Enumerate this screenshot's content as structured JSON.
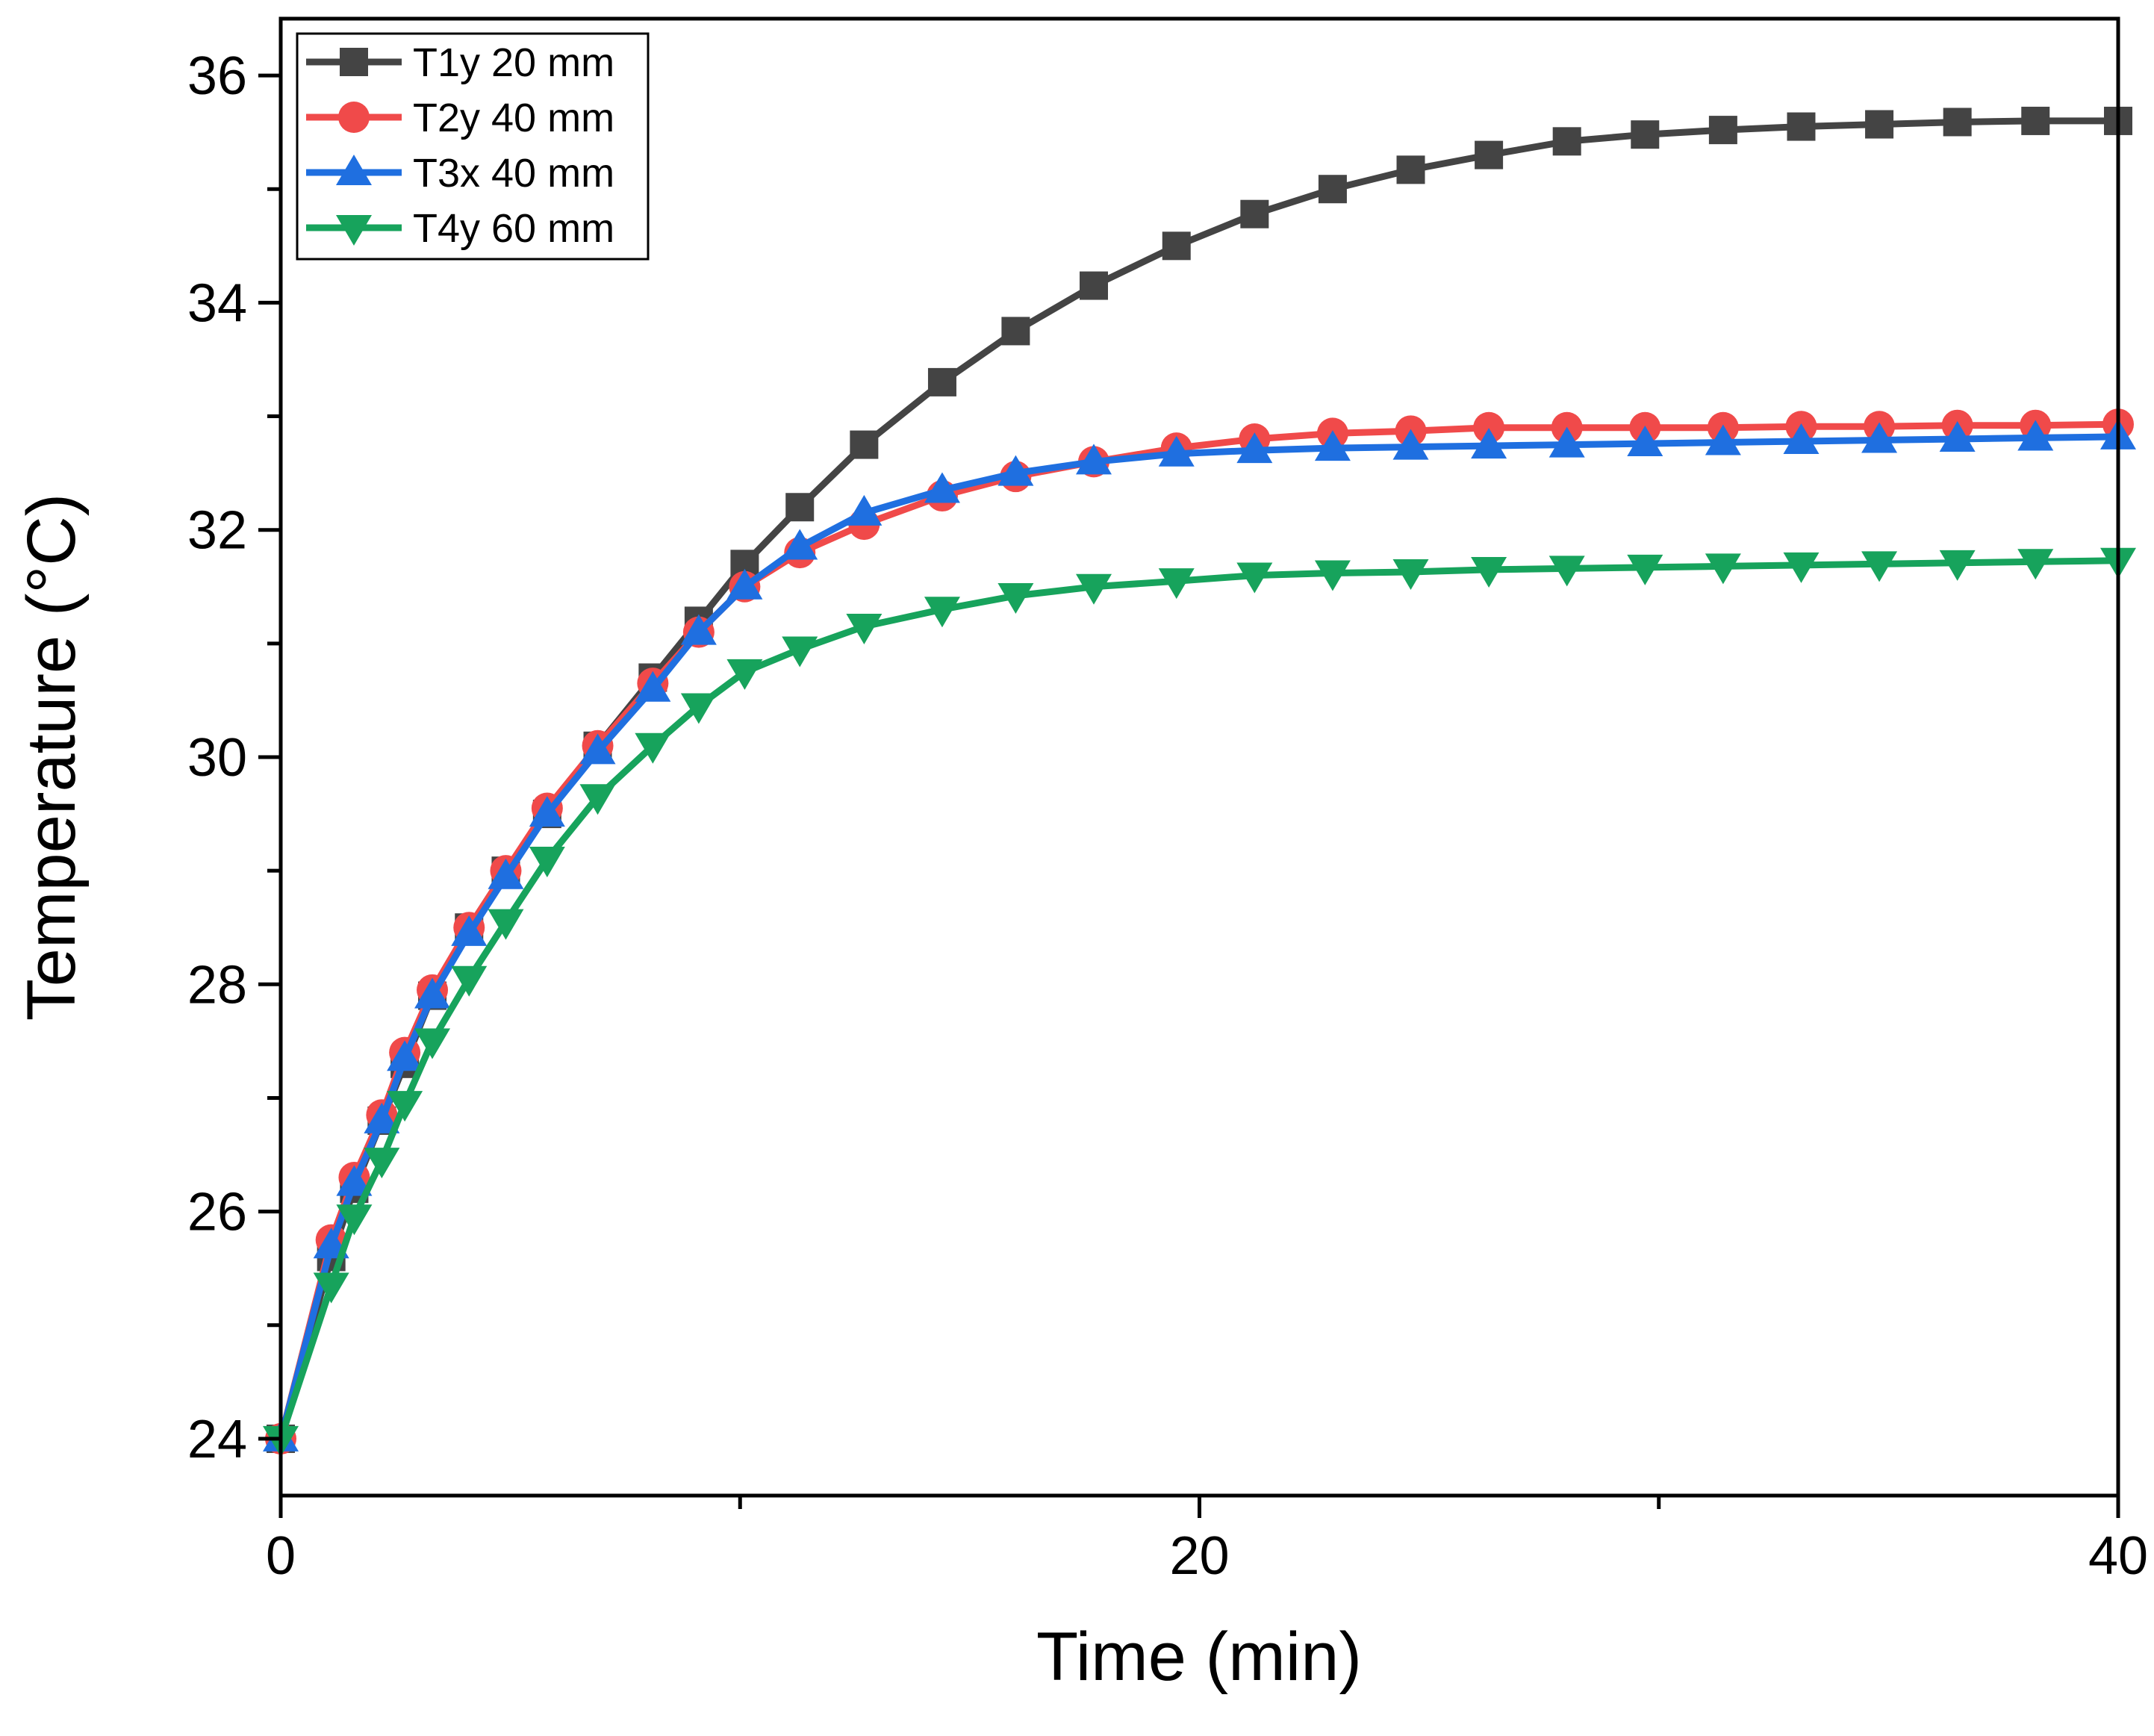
{
  "chart_data": {
    "type": "line",
    "title": "",
    "xlabel": "Time (min)",
    "ylabel": "Temperature (°C)",
    "xlim": [
      0,
      40
    ],
    "ylim": [
      23.5,
      36.5
    ],
    "xticks": [
      0,
      20,
      40
    ],
    "xticks_minor": [
      10,
      30
    ],
    "yticks": [
      24,
      26,
      28,
      30,
      32,
      34,
      36
    ],
    "yticks_minor": [
      25,
      27,
      29,
      31,
      33,
      35
    ],
    "grid": false,
    "legend_position": "top-left",
    "series": [
      {
        "name": "T1y 20 mm",
        "color": "#444444",
        "marker": "square",
        "x": [
          0,
          1.1,
          1.6,
          2.2,
          2.7,
          3.3,
          4.1,
          4.9,
          5.8,
          6.9,
          8.1,
          9.1,
          10.1,
          11.3,
          12.7,
          14.4,
          16.0,
          17.7,
          19.5,
          21.2,
          22.9,
          24.6,
          26.3,
          28.0,
          29.7,
          31.4,
          33.1,
          34.8,
          36.5,
          38.2,
          40
        ],
        "values": [
          24.0,
          25.6,
          26.2,
          26.8,
          27.3,
          27.9,
          28.5,
          29.0,
          29.5,
          30.1,
          30.7,
          31.2,
          31.7,
          32.2,
          32.75,
          33.3,
          33.75,
          34.15,
          34.5,
          34.78,
          35.0,
          35.17,
          35.3,
          35.42,
          35.48,
          35.52,
          35.55,
          35.57,
          35.59,
          35.6,
          35.6
        ]
      },
      {
        "name": "T2y 40 mm",
        "color": "#F04A4A",
        "marker": "circle",
        "x": [
          0,
          1.1,
          1.6,
          2.2,
          2.7,
          3.3,
          4.1,
          4.9,
          5.8,
          6.9,
          8.1,
          9.1,
          10.1,
          11.3,
          12.7,
          14.4,
          16.0,
          17.7,
          19.5,
          21.2,
          22.9,
          24.6,
          26.3,
          28.0,
          29.7,
          31.4,
          33.1,
          34.8,
          36.5,
          38.2,
          40
        ],
        "values": [
          24.0,
          25.75,
          26.3,
          26.85,
          27.4,
          27.95,
          28.5,
          29.0,
          29.55,
          30.1,
          30.65,
          31.1,
          31.5,
          31.8,
          32.05,
          32.3,
          32.47,
          32.6,
          32.72,
          32.8,
          32.85,
          32.87,
          32.9,
          32.9,
          32.9,
          32.9,
          32.91,
          32.91,
          32.92,
          32.92,
          32.93
        ]
      },
      {
        "name": "T3x 40 mm",
        "color": "#1F6FE0",
        "marker": "triangle-up",
        "x": [
          0,
          1.1,
          1.6,
          2.2,
          2.7,
          3.3,
          4.1,
          4.9,
          5.8,
          6.9,
          8.1,
          9.1,
          10.1,
          11.3,
          12.7,
          14.4,
          16.0,
          17.7,
          19.5,
          21.2,
          22.9,
          24.6,
          26.3,
          28.0,
          29.7,
          31.4,
          33.1,
          34.8,
          36.5,
          38.2,
          40
        ],
        "values": [
          24.0,
          25.7,
          26.25,
          26.8,
          27.35,
          27.9,
          28.45,
          28.95,
          29.5,
          30.05,
          30.6,
          31.1,
          31.5,
          31.85,
          32.15,
          32.35,
          32.5,
          32.6,
          32.67,
          32.7,
          32.72,
          32.73,
          32.74,
          32.75,
          32.76,
          32.77,
          32.78,
          32.79,
          32.8,
          32.81,
          32.82
        ]
      },
      {
        "name": "T4y 60 mm",
        "color": "#17A35C",
        "marker": "triangle-down",
        "x": [
          0,
          1.1,
          1.6,
          2.2,
          2.7,
          3.3,
          4.1,
          4.9,
          5.8,
          6.9,
          8.1,
          9.1,
          10.1,
          11.3,
          12.7,
          14.4,
          16.0,
          17.7,
          19.5,
          21.2,
          22.9,
          24.6,
          26.3,
          28.0,
          29.7,
          31.4,
          33.1,
          34.8,
          36.5,
          38.2,
          40
        ],
        "values": [
          24.0,
          25.35,
          25.95,
          26.45,
          26.95,
          27.5,
          28.05,
          28.55,
          29.1,
          29.65,
          30.1,
          30.45,
          30.75,
          30.95,
          31.15,
          31.3,
          31.42,
          31.5,
          31.55,
          31.6,
          31.62,
          31.63,
          31.65,
          31.66,
          31.67,
          31.68,
          31.69,
          31.7,
          31.71,
          31.72,
          31.73
        ]
      }
    ]
  }
}
